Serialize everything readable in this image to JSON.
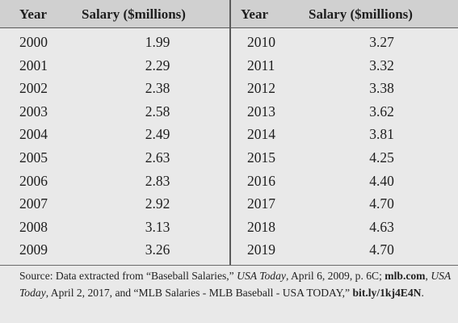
{
  "table": {
    "headers": [
      "Year",
      "Salary ($millions)",
      "Year",
      "Salary ($millions)"
    ],
    "left_rows": [
      {
        "year": "2000",
        "salary": "1.99"
      },
      {
        "year": "2001",
        "salary": "2.29"
      },
      {
        "year": "2002",
        "salary": "2.38"
      },
      {
        "year": "2003",
        "salary": "2.58"
      },
      {
        "year": "2004",
        "salary": "2.49"
      },
      {
        "year": "2005",
        "salary": "2.63"
      },
      {
        "year": "2006",
        "salary": "2.83"
      },
      {
        "year": "2007",
        "salary": "2.92"
      },
      {
        "year": "2008",
        "salary": "3.13"
      },
      {
        "year": "2009",
        "salary": "3.26"
      }
    ],
    "right_rows": [
      {
        "year": "2010",
        "salary": "3.27"
      },
      {
        "year": "2011",
        "salary": "3.32"
      },
      {
        "year": "2012",
        "salary": "3.38"
      },
      {
        "year": "2013",
        "salary": "3.62"
      },
      {
        "year": "2014",
        "salary": "3.81"
      },
      {
        "year": "2015",
        "salary": "4.25"
      },
      {
        "year": "2016",
        "salary": "4.40"
      },
      {
        "year": "2017",
        "salary": "4.70"
      },
      {
        "year": "2018",
        "salary": "4.63"
      },
      {
        "year": "2019",
        "salary": "4.70"
      }
    ]
  },
  "source": {
    "p1": "Source: Data extracted from “Baseball Salaries,” ",
    "p2": "USA Today",
    "p3": ", April 6, 2009, p. 6C; ",
    "p4": "mlb.com",
    "p5": ", ",
    "p6": "USA Today",
    "p7": ", April 2, 2017, and “MLB Salaries - MLB Baseball - USA TODAY,” ",
    "p8": "bit.ly/1kj4E4N",
    "p9": "."
  },
  "colors": {
    "header_band": "#d0d0d0",
    "background": "#e9e9e9",
    "rule": "#5a5a5a"
  }
}
